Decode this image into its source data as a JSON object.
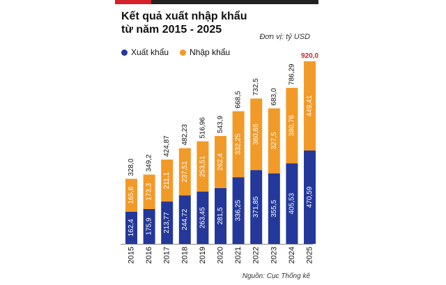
{
  "title": "Kết quả xuất nhập khẩu từ năm 2015 - 2025",
  "title_line1": "Kết quả xuất nhập khẩu",
  "title_line2": "từ năm 2015 - 2025",
  "unit": "Đơn vị: tỷ USD",
  "source": "Nguồn: Cục Thống kê",
  "colors": {
    "export": "#23389a",
    "import": "#f29a27",
    "highlight_total": "#d6202a",
    "accent_bar": "#d6202a"
  },
  "legend": [
    {
      "label": "Xuất khẩu",
      "color": "#23389a"
    },
    {
      "label": "Nhập khẩu",
      "color": "#f29a27"
    }
  ],
  "chart_data": {
    "type": "bar",
    "stacked": true,
    "categories": [
      "2015",
      "2016",
      "2017",
      "2018",
      "2019",
      "2020",
      "2021",
      "2022",
      "2023",
      "2024",
      "2025"
    ],
    "series": [
      {
        "name": "Xuất khẩu",
        "values": [
          162.4,
          175.9,
          213.77,
          244.72,
          263.45,
          281.5,
          336.25,
          371.85,
          355.5,
          405.53,
          470.59
        ],
        "labels": [
          "162,4",
          "175,9",
          "213,77",
          "244,72",
          "263,45",
          "281,5",
          "336,25",
          "371,85",
          "355,5",
          "405,53",
          "470,59"
        ]
      },
      {
        "name": "Nhập khẩu",
        "values": [
          165.6,
          173.3,
          211.1,
          237.51,
          253.51,
          262.4,
          332.25,
          360.65,
          327.5,
          380.76,
          449.41
        ],
        "labels": [
          "165,6",
          "173,3",
          "211,1",
          "237,51",
          "253,51",
          "262,4",
          "332,25",
          "360,65",
          "327,5",
          "380,76",
          "449,41"
        ]
      }
    ],
    "totals": [
      328.0,
      349.2,
      424.87,
      482.23,
      516.96,
      543.9,
      668.5,
      732.5,
      683.0,
      786.29,
      920.0
    ],
    "total_labels": [
      "328,0",
      "349,2",
      "424,87",
      "482,23",
      "516,96",
      "543,9",
      "668,5",
      "732,5",
      "683,0",
      "786,29",
      "920,0"
    ],
    "highlight_index": 10,
    "ylim": [
      0,
      920
    ],
    "grid": false,
    "legend_position": "top-left"
  }
}
